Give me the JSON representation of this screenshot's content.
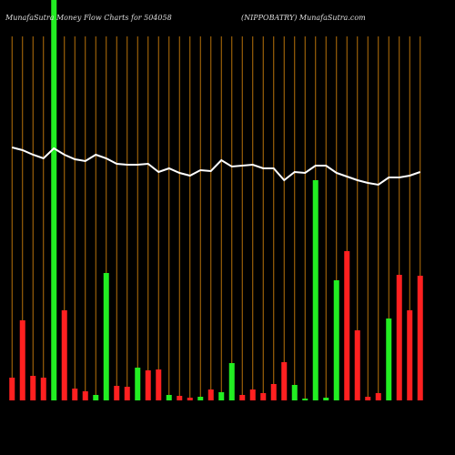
{
  "chart_data": {
    "type": "money-flow",
    "title": "MunafaSutra  Money Flow  Charts for 504058",
    "subtitle": "(NIPPOBATRY) MunafaSutra.com",
    "categories": [
      null,
      null,
      null,
      null,
      null,
      null,
      null,
      null,
      null,
      null,
      null,
      null,
      null,
      null,
      null,
      null,
      null,
      null,
      null,
      null,
      null,
      null,
      null,
      null,
      null,
      null,
      null,
      null,
      null,
      null,
      null,
      null,
      null,
      null,
      null,
      null,
      null,
      null,
      null,
      null
    ],
    "series": [
      {
        "type": "bar",
        "values": [
          25,
          88,
          27,
          25,
          440,
          99,
          13,
          10,
          6,
          140,
          16,
          15,
          36,
          33,
          34,
          6,
          5,
          3,
          4,
          12,
          9,
          41,
          6,
          12,
          8,
          18,
          42,
          17,
          2,
          242,
          3,
          132,
          164,
          77,
          4,
          8,
          90,
          138,
          99,
          137
        ],
        "colors": [
          "#ff2020",
          "#ff2020",
          "#ff2020",
          "#ff2020",
          "#22ee22",
          "#ff2020",
          "#ff2020",
          "#ff2020",
          "#22ee22",
          "#22ee22",
          "#ff2020",
          "#ff2020",
          "#22ee22",
          "#ff2020",
          "#ff2020",
          "#22ee22",
          "#ff2020",
          "#ff2020",
          "#22ee22",
          "#ff2020",
          "#22ee22",
          "#22ee22",
          "#ff2020",
          "#ff2020",
          "#ff2020",
          "#ff2020",
          "#ff2020",
          "#22ee22",
          "#22ee22",
          "#22ee22",
          "#22ee22",
          "#22ee22",
          "#ff2020",
          "#ff2020",
          "#ff2020",
          "#ff2020",
          "#22ee22",
          "#ff2020",
          "#ff2020",
          "#ff2020"
        ]
      },
      {
        "type": "line",
        "color": "#ffffff",
        "values": [
          278,
          275,
          270,
          266,
          277,
          270,
          265,
          263,
          270,
          266,
          260,
          259,
          259,
          260,
          251,
          255,
          250,
          247,
          253,
          252,
          264,
          257,
          258,
          259,
          255,
          255,
          242,
          251,
          250,
          258,
          258,
          250,
          246,
          242,
          239,
          237,
          245,
          245,
          247,
          251
        ]
      }
    ],
    "ylim": [
      0,
      440
    ],
    "grid_color": "#b8730a"
  }
}
